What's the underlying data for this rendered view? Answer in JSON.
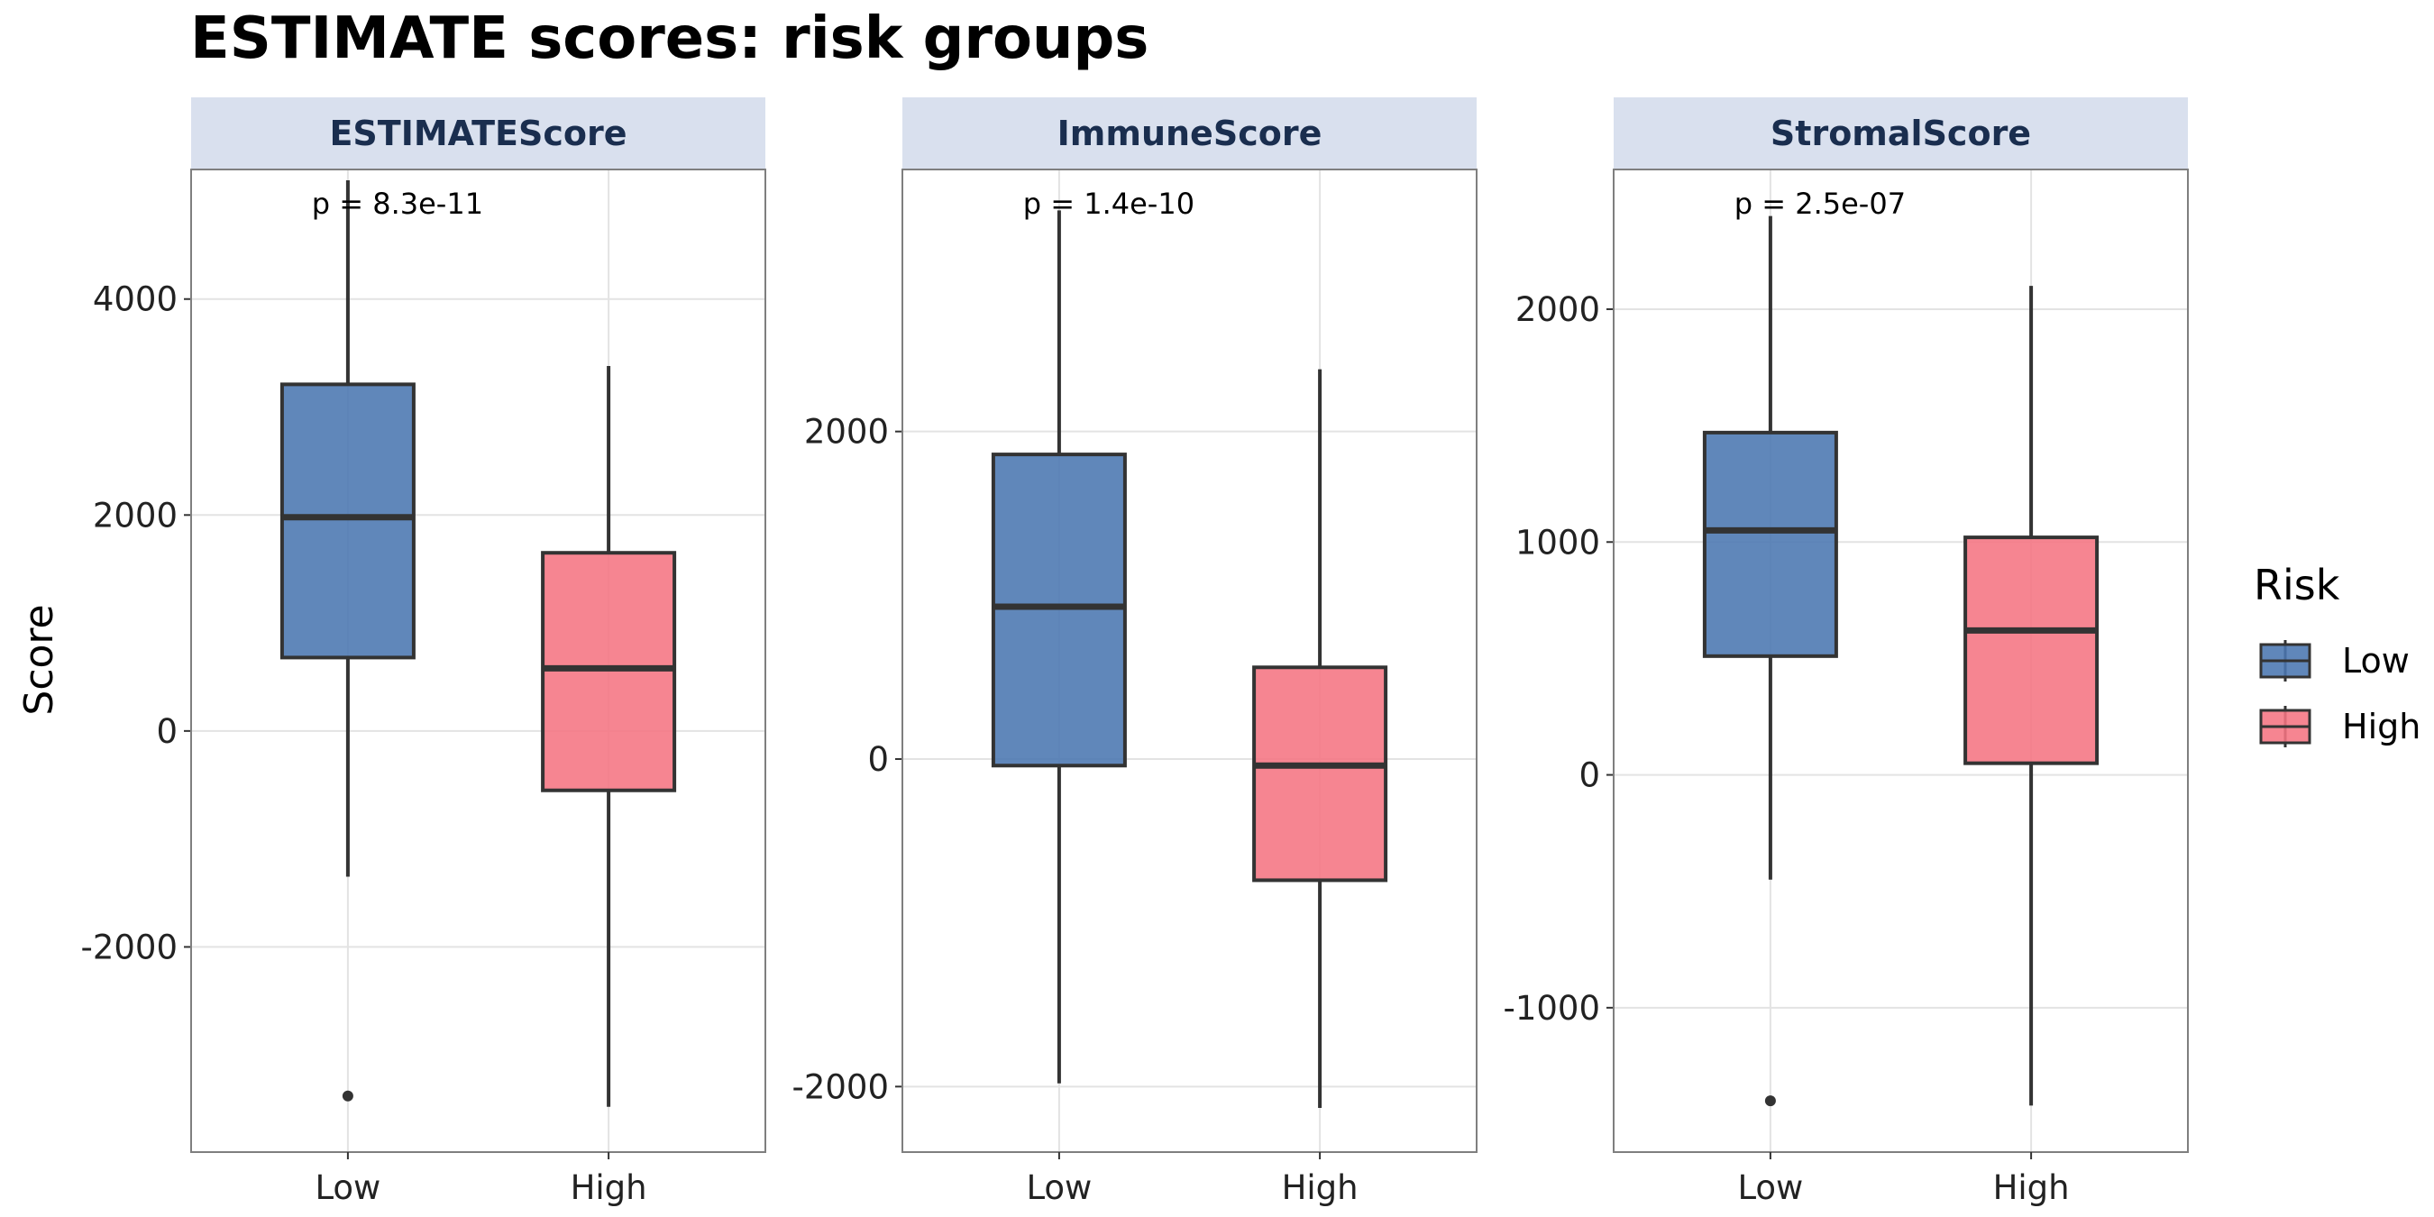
{
  "chart_data": {
    "type": "boxplot",
    "title": "ESTIMATE scores: risk groups",
    "ylabel": "Score",
    "xlabel": "",
    "categories": [
      "Low",
      "High"
    ],
    "legend": {
      "title": "Risk",
      "position": "right",
      "items": [
        {
          "label": "Low",
          "color": "#4a76b0"
        },
        {
          "label": "High",
          "color": "#f57482"
        }
      ]
    },
    "grid": true,
    "panels": [
      {
        "strip": "ESTIMATEScore",
        "pvalue": "p = 8.3e-11",
        "ylim": [
          -3900,
          5200
        ],
        "yticks": [
          -2000,
          0,
          2000,
          4000
        ],
        "ytick_labels": [
          "-2000",
          "0",
          "2000",
          "4000"
        ],
        "boxes": [
          {
            "group": "Low",
            "whisker_low": -1350,
            "q1": 680,
            "median": 1980,
            "q3": 3210,
            "whisker_high": 5100,
            "outliers": [
              -3380
            ]
          },
          {
            "group": "High",
            "whisker_low": -3480,
            "q1": -550,
            "median": 580,
            "q3": 1650,
            "whisker_high": 3380,
            "outliers": []
          }
        ]
      },
      {
        "strip": "ImmuneScore",
        "pvalue": "p = 1.4e-10",
        "ylim": [
          -2400,
          3600
        ],
        "yticks": [
          -2000,
          0,
          2000
        ],
        "ytick_labels": [
          "-2000",
          "0",
          "2000"
        ],
        "boxes": [
          {
            "group": "Low",
            "whisker_low": -1980,
            "q1": -40,
            "median": 930,
            "q3": 1860,
            "whisker_high": 3350,
            "outliers": []
          },
          {
            "group": "High",
            "whisker_low": -2130,
            "q1": -740,
            "median": -40,
            "q3": 560,
            "whisker_high": 2380,
            "outliers": []
          }
        ]
      },
      {
        "strip": "StromalScore",
        "pvalue": "p = 2.5e-07",
        "ylim": [
          -1620,
          2600
        ],
        "yticks": [
          -1000,
          0,
          1000,
          2000
        ],
        "ytick_labels": [
          "-1000",
          "0",
          "1000",
          "2000"
        ],
        "boxes": [
          {
            "group": "Low",
            "whisker_low": -450,
            "q1": 510,
            "median": 1050,
            "q3": 1470,
            "whisker_high": 2400,
            "outliers": [
              -1400
            ]
          },
          {
            "group": "High",
            "whisker_low": -1420,
            "q1": 50,
            "median": 620,
            "q3": 1020,
            "whisker_high": 2100,
            "outliers": []
          }
        ]
      }
    ]
  }
}
